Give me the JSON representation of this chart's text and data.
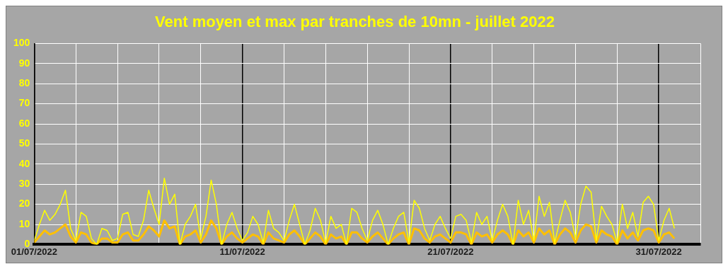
{
  "chart_data": {
    "type": "line",
    "title": "Vent moyen et max par tranches de 10mn - juillet 2022",
    "x": [
      "2022-07-01T00:00",
      "2022-07-01T06:00",
      "2022-07-01T12:00",
      "2022-07-01T18:00",
      "2022-07-02T00:00",
      "2022-07-02T06:00",
      "2022-07-02T12:00",
      "2022-07-02T18:00",
      "2022-07-03T00:00",
      "2022-07-03T06:00",
      "2022-07-03T12:00",
      "2022-07-03T18:00",
      "2022-07-04T00:00",
      "2022-07-04T06:00",
      "2022-07-04T12:00",
      "2022-07-04T18:00",
      "2022-07-05T00:00",
      "2022-07-05T06:00",
      "2022-07-05T12:00",
      "2022-07-05T18:00",
      "2022-07-06T00:00",
      "2022-07-06T06:00",
      "2022-07-06T12:00",
      "2022-07-06T18:00",
      "2022-07-07T00:00",
      "2022-07-07T06:00",
      "2022-07-07T12:00",
      "2022-07-07T18:00",
      "2022-07-08T00:00",
      "2022-07-08T06:00",
      "2022-07-08T12:00",
      "2022-07-08T18:00",
      "2022-07-09T00:00",
      "2022-07-09T06:00",
      "2022-07-09T12:00",
      "2022-07-09T18:00",
      "2022-07-10T00:00",
      "2022-07-10T06:00",
      "2022-07-10T12:00",
      "2022-07-10T18:00",
      "2022-07-11T00:00",
      "2022-07-11T06:00",
      "2022-07-11T12:00",
      "2022-07-11T18:00",
      "2022-07-12T00:00",
      "2022-07-12T06:00",
      "2022-07-12T12:00",
      "2022-07-12T18:00",
      "2022-07-13T00:00",
      "2022-07-13T06:00",
      "2022-07-13T12:00",
      "2022-07-13T18:00",
      "2022-07-14T00:00",
      "2022-07-14T06:00",
      "2022-07-14T12:00",
      "2022-07-14T18:00",
      "2022-07-15T00:00",
      "2022-07-15T06:00",
      "2022-07-15T12:00",
      "2022-07-15T18:00",
      "2022-07-16T00:00",
      "2022-07-16T06:00",
      "2022-07-16T12:00",
      "2022-07-16T18:00",
      "2022-07-17T00:00",
      "2022-07-17T06:00",
      "2022-07-17T12:00",
      "2022-07-17T18:00",
      "2022-07-18T00:00",
      "2022-07-18T06:00",
      "2022-07-18T12:00",
      "2022-07-18T18:00",
      "2022-07-19T00:00",
      "2022-07-19T06:00",
      "2022-07-19T12:00",
      "2022-07-19T18:00",
      "2022-07-20T00:00",
      "2022-07-20T06:00",
      "2022-07-20T12:00",
      "2022-07-20T18:00",
      "2022-07-21T00:00",
      "2022-07-21T06:00",
      "2022-07-21T12:00",
      "2022-07-21T18:00",
      "2022-07-22T00:00",
      "2022-07-22T06:00",
      "2022-07-22T12:00",
      "2022-07-22T18:00",
      "2022-07-23T00:00",
      "2022-07-23T06:00",
      "2022-07-23T12:00",
      "2022-07-23T18:00",
      "2022-07-24T00:00",
      "2022-07-24T06:00",
      "2022-07-24T12:00",
      "2022-07-24T18:00",
      "2022-07-25T00:00",
      "2022-07-25T06:00",
      "2022-07-25T12:00",
      "2022-07-25T18:00",
      "2022-07-26T00:00",
      "2022-07-26T06:00",
      "2022-07-26T12:00",
      "2022-07-26T18:00",
      "2022-07-27T00:00",
      "2022-07-27T06:00",
      "2022-07-27T12:00",
      "2022-07-27T18:00",
      "2022-07-28T00:00",
      "2022-07-28T06:00",
      "2022-07-28T12:00",
      "2022-07-28T18:00",
      "2022-07-29T00:00",
      "2022-07-29T06:00",
      "2022-07-29T12:00",
      "2022-07-29T18:00",
      "2022-07-30T00:00",
      "2022-07-30T06:00",
      "2022-07-30T12:00",
      "2022-07-30T18:00",
      "2022-07-31T00:00",
      "2022-07-31T06:00",
      "2022-07-31T12:00",
      "2022-07-31T18:00"
    ],
    "series": [
      {
        "color": "#ffff00",
        "values": [
          2,
          10,
          17,
          12,
          15,
          20,
          27,
          8,
          2,
          16,
          14,
          3,
          0,
          8,
          7,
          2,
          3,
          15,
          16,
          5,
          4,
          12,
          27,
          18,
          10,
          33,
          20,
          25,
          0,
          10,
          14,
          20,
          3,
          14,
          32,
          20,
          0,
          10,
          16,
          8,
          2,
          6,
          14,
          10,
          1,
          17,
          8,
          6,
          2,
          12,
          20,
          10,
          0,
          7,
          18,
          12,
          1,
          14,
          8,
          10,
          0,
          18,
          16,
          8,
          2,
          12,
          17,
          10,
          0,
          8,
          14,
          16,
          1,
          22,
          18,
          8,
          2,
          10,
          14,
          8,
          3,
          14,
          15,
          12,
          1,
          16,
          10,
          14,
          2,
          12,
          20,
          14,
          0,
          22,
          10,
          17,
          2,
          24,
          14,
          21,
          1,
          12,
          22,
          16,
          3,
          20,
          29,
          26,
          2,
          19,
          14,
          10,
          1,
          20,
          8,
          16,
          4,
          21,
          24,
          20,
          2,
          12,
          18,
          8
        ]
      },
      {
        "color": "#ffc000",
        "values": [
          1,
          4,
          7,
          5,
          6,
          8,
          10,
          4,
          1,
          6,
          5,
          1,
          0,
          3,
          3,
          1,
          1,
          5,
          6,
          2,
          2,
          5,
          9,
          7,
          4,
          12,
          8,
          9,
          0,
          4,
          5,
          7,
          1,
          5,
          12,
          8,
          0,
          4,
          6,
          3,
          1,
          3,
          5,
          4,
          0,
          6,
          3,
          2,
          1,
          5,
          7,
          4,
          0,
          3,
          6,
          4,
          0,
          5,
          3,
          4,
          0,
          6,
          6,
          3,
          1,
          4,
          6,
          3,
          0,
          3,
          5,
          6,
          0,
          8,
          7,
          3,
          1,
          4,
          5,
          3,
          1,
          6,
          6,
          5,
          0,
          6,
          4,
          5,
          1,
          5,
          7,
          5,
          0,
          7,
          4,
          6,
          1,
          8,
          5,
          7,
          0,
          5,
          8,
          6,
          1,
          7,
          10,
          9,
          1,
          7,
          5,
          4,
          0,
          7,
          3,
          6,
          2,
          7,
          8,
          7,
          1,
          5,
          6,
          3
        ]
      }
    ],
    "xlim": [
      "2022-07-01",
      "2022-08-02"
    ],
    "xticks": [
      {
        "value": "2022-07-01",
        "label": "01/07/2022"
      },
      {
        "value": "2022-07-03",
        "label": null
      },
      {
        "value": "2022-07-05",
        "label": null
      },
      {
        "value": "2022-07-07",
        "label": null
      },
      {
        "value": "2022-07-09",
        "label": null
      },
      {
        "value": "2022-07-11",
        "label": "11/07/2022"
      },
      {
        "value": "2022-07-13",
        "label": null
      },
      {
        "value": "2022-07-15",
        "label": null
      },
      {
        "value": "2022-07-17",
        "label": null
      },
      {
        "value": "2022-07-19",
        "label": null
      },
      {
        "value": "2022-07-21",
        "label": "21/07/2022"
      },
      {
        "value": "2022-07-23",
        "label": null
      },
      {
        "value": "2022-07-25",
        "label": null
      },
      {
        "value": "2022-07-27",
        "label": null
      },
      {
        "value": "2022-07-29",
        "label": null
      },
      {
        "value": "2022-07-31",
        "label": "31/07/2022"
      },
      {
        "value": "2022-08-02",
        "label": null
      }
    ],
    "ylim": [
      0,
      100
    ],
    "yticks": [
      0,
      10,
      20,
      30,
      40,
      50,
      60,
      70,
      80,
      90,
      100
    ],
    "grid": true,
    "legend": false,
    "marker": "none",
    "line_style": "solid"
  }
}
